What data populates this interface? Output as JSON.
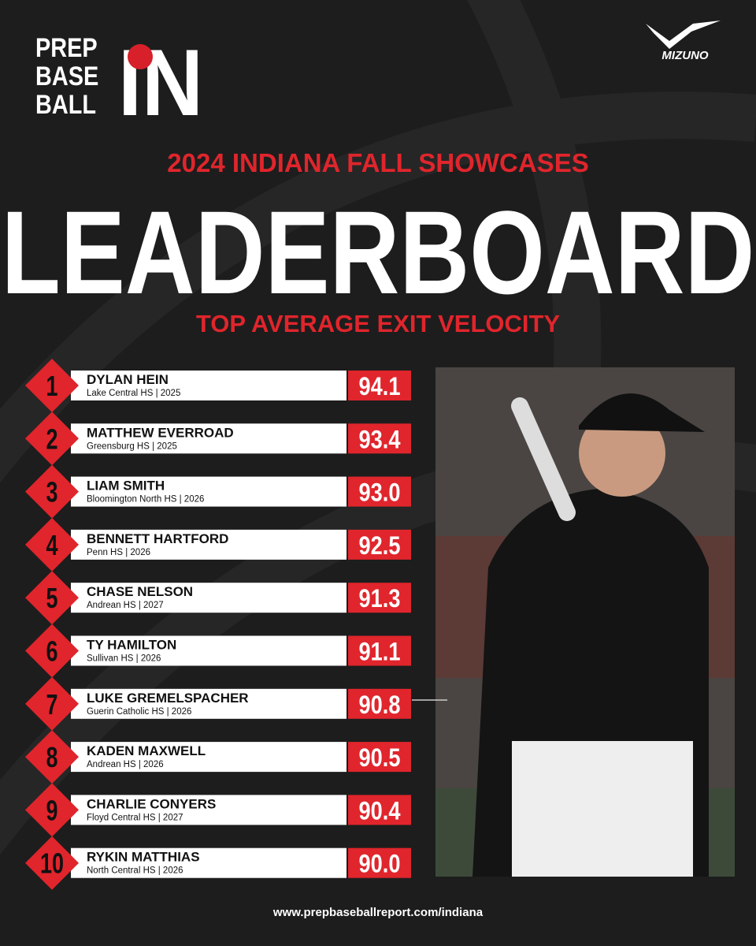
{
  "logo": {
    "lines": [
      "PREP",
      "BASE",
      "BALL"
    ],
    "mark": "IN"
  },
  "sponsor": "MIZUNO",
  "header": {
    "subtitle": "2024 INDIANA FALL SHOWCASES",
    "title": "LEADERBOARD",
    "metric": "TOP AVERAGE EXIT VELOCITY"
  },
  "entries": [
    {
      "rank": "1",
      "name": "DYLAN HEIN",
      "detail": "Lake Central HS | 2025",
      "value": "94.1"
    },
    {
      "rank": "2",
      "name": "MATTHEW EVERROAD",
      "detail": "Greensburg HS | 2025",
      "value": "93.4"
    },
    {
      "rank": "3",
      "name": "LIAM SMITH",
      "detail": "Bloomington North HS | 2026",
      "value": "93.0"
    },
    {
      "rank": "4",
      "name": "BENNETT HARTFORD",
      "detail": "Penn HS | 2026",
      "value": "92.5"
    },
    {
      "rank": "5",
      "name": "CHASE NELSON",
      "detail": "Andrean HS | 2027",
      "value": "91.3"
    },
    {
      "rank": "6",
      "name": "TY HAMILTON",
      "detail": "Sullivan HS | 2026",
      "value": "91.1"
    },
    {
      "rank": "7",
      "name": "LUKE GREMELSPACHER",
      "detail": "Guerin Catholic HS | 2026",
      "value": "90.8"
    },
    {
      "rank": "8",
      "name": "KADEN MAXWELL",
      "detail": "Andrean HS | 2026",
      "value": "90.5"
    },
    {
      "rank": "9",
      "name": "CHARLIE CONYERS",
      "detail": "Floyd Central HS | 2027",
      "value": "90.4"
    },
    {
      "rank": "10",
      "name": "RYKIN MATTHIAS",
      "detail": "North Central HS | 2026",
      "value": "90.0"
    }
  ],
  "footer": "www.prepbaseballreport.com/indiana"
}
